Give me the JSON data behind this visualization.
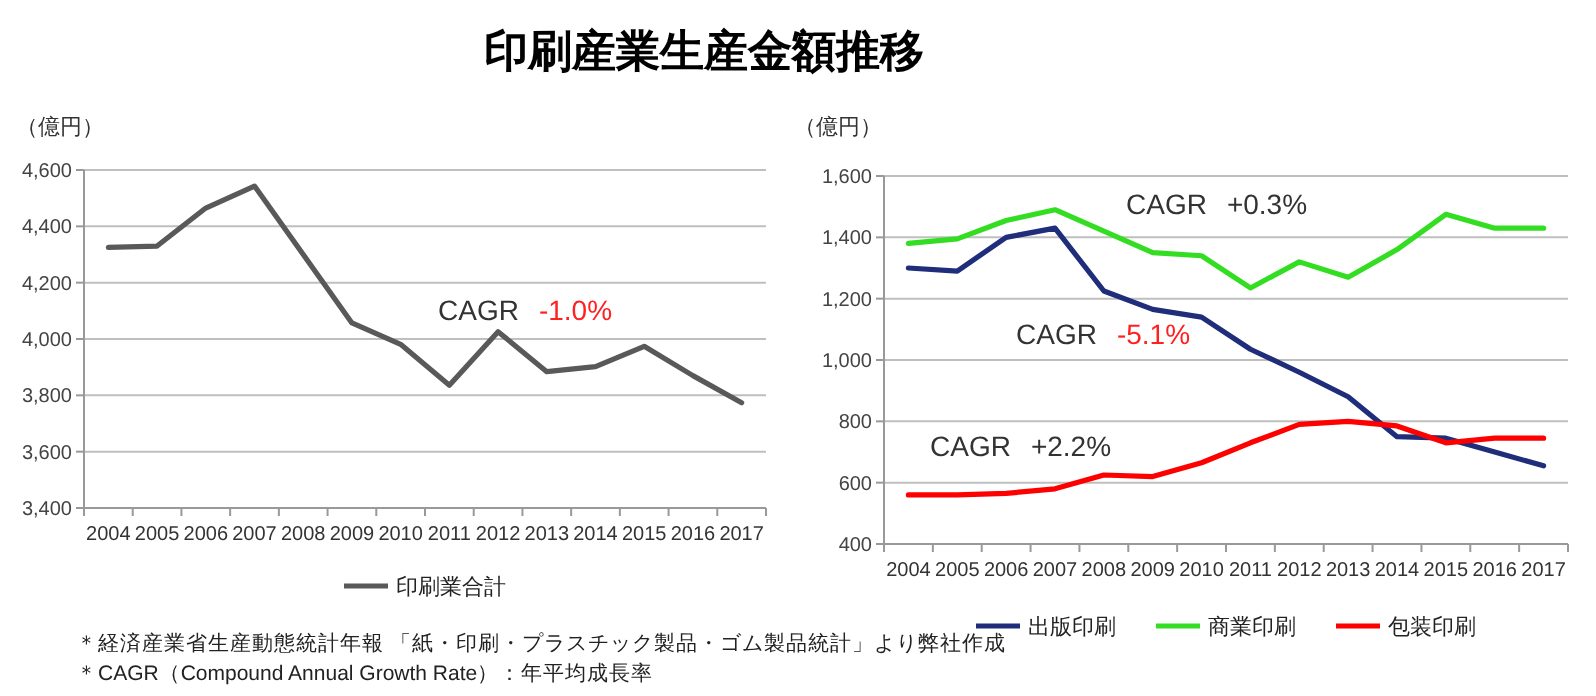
{
  "chart_data": [
    {
      "type": "line",
      "title": "印刷産業生産金額推移",
      "ylabel": "（億円）",
      "categories": [
        "2004",
        "2005",
        "2006",
        "2007",
        "2008",
        "2009",
        "2010",
        "2011",
        "2012",
        "2013",
        "2014",
        "2015",
        "2016",
        "2017"
      ],
      "series": [
        {
          "name": "印刷業合計",
          "color": "#595959",
          "values": [
            4325,
            4330,
            4465,
            4543,
            4300,
            4057,
            3981,
            3836,
            4026,
            3884,
            3902,
            3974,
            3870,
            3774
          ]
        }
      ],
      "ylim": [
        3400,
        4600
      ],
      "yticks": [
        {
          "value": 3400,
          "label": "3,400"
        },
        {
          "value": 3600,
          "label": "3,600"
        },
        {
          "value": 3800,
          "label": "3,800"
        },
        {
          "value": 4000,
          "label": "4,000"
        },
        {
          "value": 4200,
          "label": "4,200"
        },
        {
          "value": 4400,
          "label": "4,400"
        },
        {
          "value": 4600,
          "label": "4,600"
        }
      ],
      "grid": "y",
      "legend": "bottom",
      "annotations": [
        "CAGR -1.0%",
        "＊経済産業省生産動態統計年報 「紙・印刷・プラスチック製品・ゴム製品統計」より弊社作成",
        "＊CAGR（Compound Annual Growth Rate）：年平均成長率"
      ]
    },
    {
      "type": "line",
      "ylabel": "（億円）",
      "categories": [
        "2004",
        "2005",
        "2006",
        "2007",
        "2008",
        "2009",
        "2010",
        "2011",
        "2012",
        "2013",
        "2014",
        "2015",
        "2016",
        "2017"
      ],
      "series": [
        {
          "name": "出版印刷",
          "color": "#1f2d7a",
          "values": [
            1300,
            1290,
            1400,
            1430,
            1225,
            1165,
            1140,
            1035,
            960,
            880,
            750,
            745,
            700,
            655
          ]
        },
        {
          "name": "商業印刷",
          "color": "#33dd22",
          "values": [
            1380,
            1395,
            1455,
            1490,
            1420,
            1350,
            1340,
            1235,
            1320,
            1270,
            1360,
            1475,
            1430,
            1430
          ]
        },
        {
          "name": "包装印刷",
          "color": "#ff0000",
          "values": [
            560,
            560,
            565,
            580,
            625,
            620,
            665,
            730,
            790,
            800,
            785,
            730,
            745,
            745
          ]
        }
      ],
      "ylim": [
        400,
        1600
      ],
      "yticks": [
        400,
        600,
        800,
        {
          "value": 1000,
          "label": "1,000"
        },
        {
          "value": 1200,
          "label": "1,200"
        },
        {
          "value": 1400,
          "label": "1,400"
        },
        {
          "value": 1600,
          "label": "1,600"
        }
      ],
      "grid": "y",
      "legend": "bottom",
      "annotations": [
        "CAGR +0.3%",
        "CAGR -5.1%",
        "CAGR +2.2%"
      ]
    }
  ]
}
